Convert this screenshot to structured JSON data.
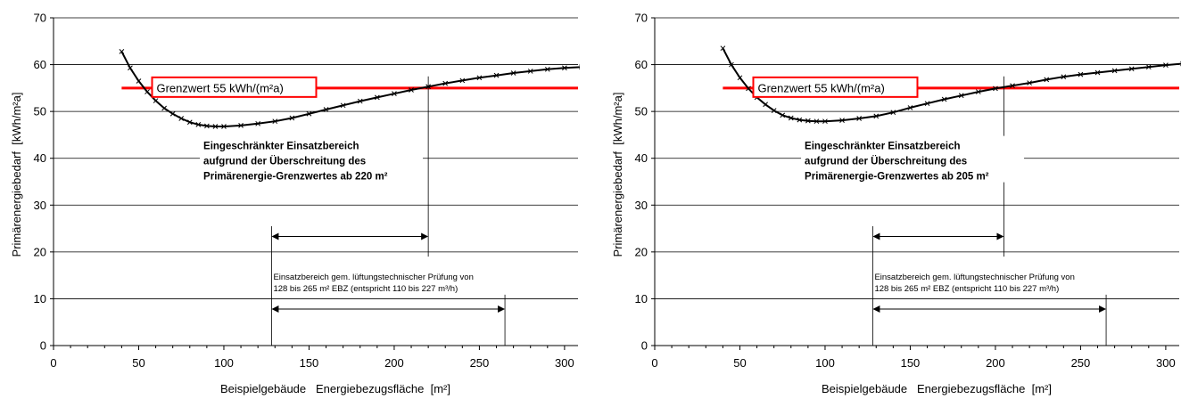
{
  "chart_data": [
    {
      "type": "line",
      "xlabel": "Beispielgebäude   Energiebezugsfläche  [m²]",
      "ylabel": "Primärenergiebedarf  [kWh/m²a]",
      "xlim": [
        0,
        310
      ],
      "ylim": [
        0,
        70
      ],
      "xticks": [
        0,
        50,
        100,
        150,
        200,
        250,
        300
      ],
      "yticks": [
        0,
        10,
        20,
        30,
        40,
        50,
        60,
        70
      ],
      "grid": "horizontal",
      "series": [
        {
          "marker": "x",
          "color": "#000000",
          "x": [
            40,
            45,
            50,
            55,
            60,
            65,
            70,
            75,
            80,
            85,
            90,
            95,
            100,
            110,
            120,
            130,
            140,
            150,
            160,
            170,
            180,
            190,
            200,
            210,
            220,
            230,
            240,
            250,
            260,
            270,
            280,
            290,
            300,
            310
          ],
          "y": [
            62.8,
            59.3,
            56.5,
            54.2,
            52.3,
            50.7,
            49.5,
            48.5,
            47.7,
            47.2,
            46.9,
            46.8,
            46.8,
            47.0,
            47.4,
            47.9,
            48.6,
            49.5,
            50.4,
            51.3,
            52.2,
            53.0,
            53.8,
            54.6,
            55.3,
            56.0,
            56.6,
            57.2,
            57.7,
            58.2,
            58.6,
            59.0,
            59.3,
            59.5
          ]
        }
      ],
      "limit": {
        "value": 55,
        "label": "Grenzwert 55 kWh/(m²a)",
        "x_start": 40,
        "color": "#ff0000"
      },
      "restricted": {
        "x_end": 220,
        "lines": [
          "Eingeschränkter Einsatzbereich",
          "aufgrund der Überschreitung des",
          "Primärenergie-Grenzwertes ab 220 m²"
        ]
      },
      "range": {
        "x_start": 128,
        "x_end": 265,
        "lines": [
          "Einsatzbereich gem. lüftungstechnischer Prüfung von",
          "128 bis 265 m² EBZ (entspricht 110 bis 227 m³/h)"
        ]
      }
    },
    {
      "type": "line",
      "xlabel": "Beispielgebäude   Energiebezugsfläche  [m²]",
      "ylabel": "Primärenergiebedarf  [kWh/m²a]",
      "xlim": [
        0,
        310
      ],
      "ylim": [
        0,
        70
      ],
      "xticks": [
        0,
        50,
        100,
        150,
        200,
        250,
        300
      ],
      "yticks": [
        0,
        10,
        20,
        30,
        40,
        50,
        60,
        70
      ],
      "grid": "horizontal",
      "series": [
        {
          "marker": "x",
          "color": "#000000",
          "x": [
            40,
            45,
            50,
            55,
            60,
            65,
            70,
            75,
            80,
            85,
            90,
            95,
            100,
            110,
            120,
            130,
            140,
            150,
            160,
            170,
            180,
            190,
            200,
            210,
            220,
            230,
            240,
            250,
            260,
            270,
            280,
            290,
            300,
            310
          ],
          "y": [
            63.5,
            60.0,
            57.2,
            54.9,
            53.0,
            51.5,
            50.2,
            49.2,
            48.6,
            48.2,
            48.0,
            47.9,
            47.9,
            48.1,
            48.5,
            49.0,
            49.8,
            50.8,
            51.7,
            52.6,
            53.4,
            54.2,
            54.9,
            55.5,
            56.1,
            56.8,
            57.4,
            57.9,
            58.3,
            58.7,
            59.1,
            59.5,
            59.9,
            60.2
          ]
        }
      ],
      "limit": {
        "value": 55,
        "label": "Grenzwert 55 kWh/(m²a)",
        "x_start": 40,
        "color": "#ff0000"
      },
      "restricted": {
        "x_end": 205,
        "lines": [
          "Eingeschränkter Einsatzbereich",
          "aufgrund der Überschreitung des",
          "Primärenergie-Grenzwertes ab 205 m²"
        ]
      },
      "range": {
        "x_start": 128,
        "x_end": 265,
        "lines": [
          "Einsatzbereich gem. lüftungstechnischer Prüfung von",
          "128 bis 265 m² EBZ (entspricht 110 bis 227 m³/h)"
        ]
      }
    }
  ]
}
